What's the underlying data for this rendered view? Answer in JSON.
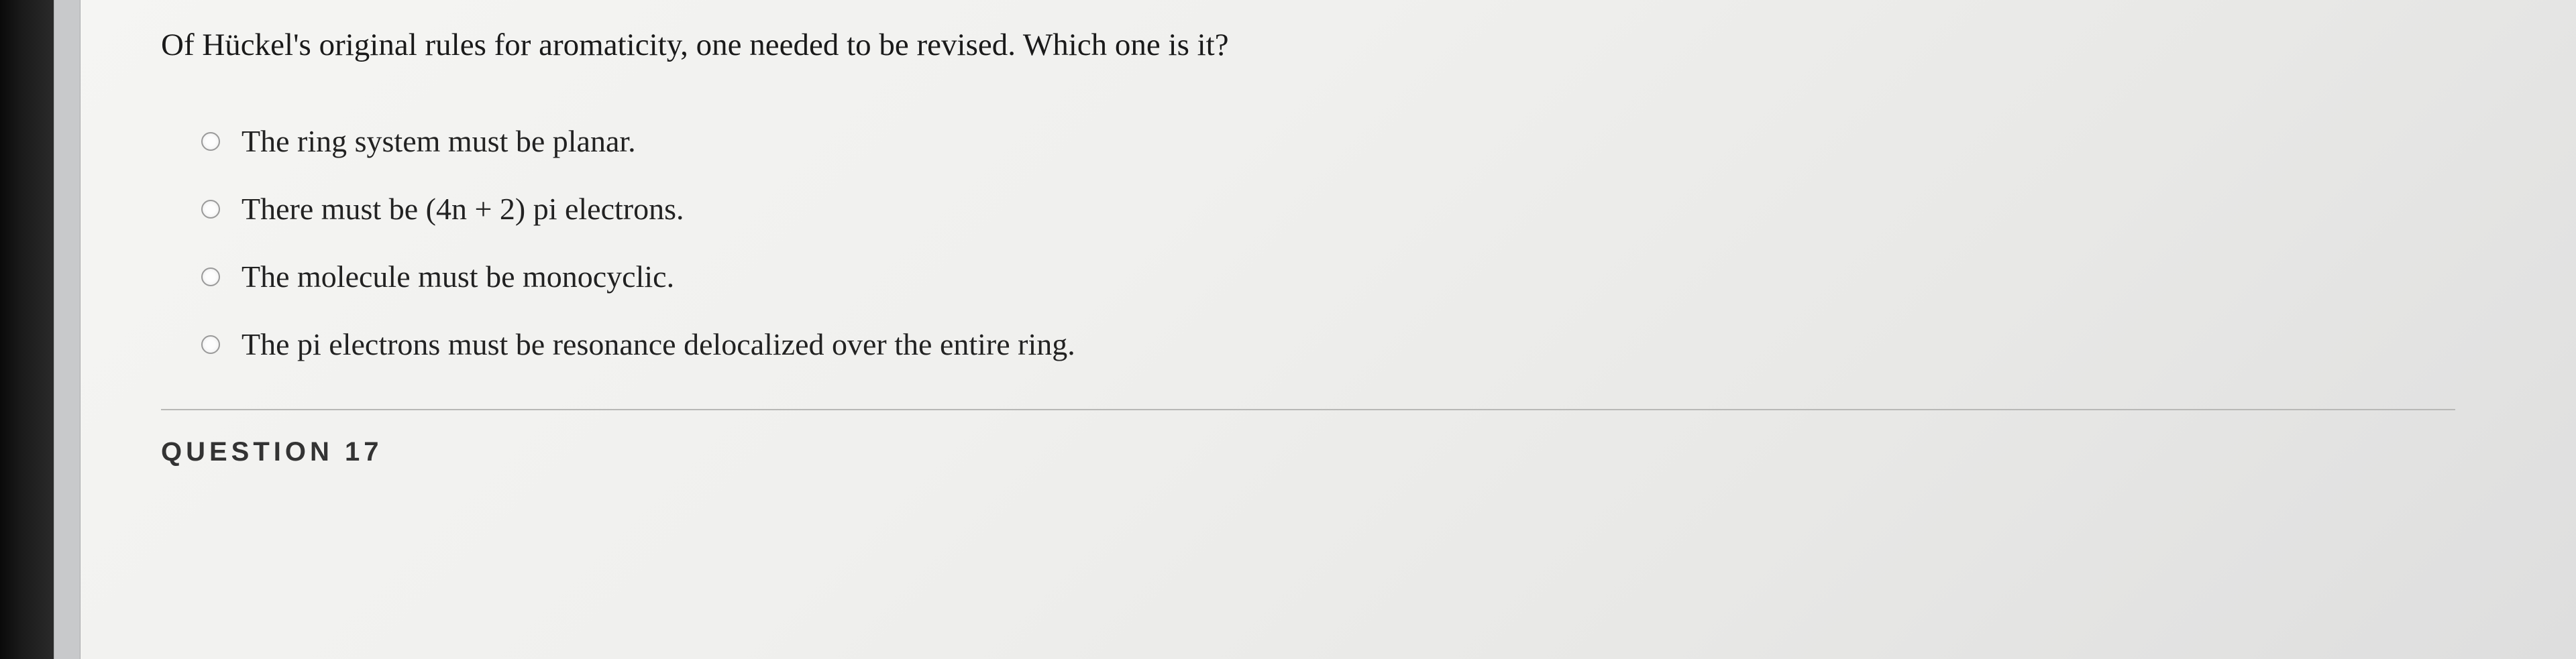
{
  "question": {
    "prompt": "Of Hückel's original rules for aromaticity, one needed to be revised.  Which one is it?",
    "options": [
      {
        "label": "The ring system must be planar."
      },
      {
        "label": "There must be (4n + 2) pi electrons."
      },
      {
        "label": "The molecule must be monocyclic."
      },
      {
        "label": "The pi electrons must be resonance delocalized over the entire ring."
      }
    ]
  },
  "next_header": "QUESTION 17",
  "colors": {
    "page_bg": "#f2f2f0",
    "text": "#1a1a1a",
    "radio_border": "#9a9a9a",
    "divider": "#b8b8b6",
    "sidebar": "#111111",
    "scroll_track": "#c8c9cb"
  }
}
